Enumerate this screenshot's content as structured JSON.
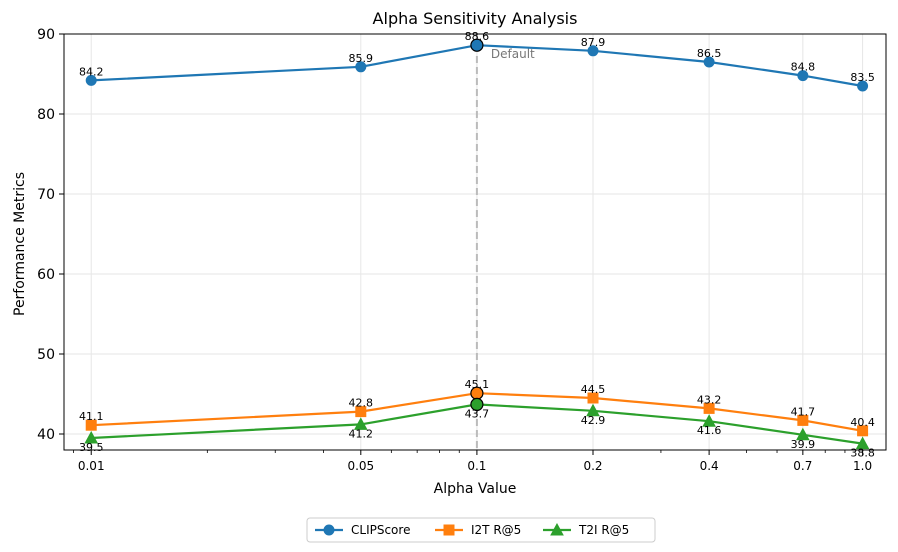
{
  "chart_data": {
    "type": "line",
    "title": "Alpha Sensitivity Analysis",
    "xlabel": "Alpha Value",
    "ylabel": "Performance Metrics",
    "x_scale": "log",
    "x": [
      0.01,
      0.05,
      0.1,
      0.2,
      0.4,
      0.7,
      1.0
    ],
    "x_tick_labels": [
      "0.01",
      "0.05",
      "0.1",
      "0.2",
      "0.4",
      "0.7",
      "1.0"
    ],
    "ylim": [
      38,
      90
    ],
    "y_ticks": [
      40,
      50,
      60,
      70,
      80,
      90
    ],
    "y_tick_labels": [
      "40",
      "50",
      "60",
      "70",
      "80",
      "90"
    ],
    "grid": true,
    "reference_line": {
      "x": 0.1,
      "label": "Default",
      "color": "#bbbbbb"
    },
    "highlight_x": 0.1,
    "legend_position": "bottom-center",
    "series": [
      {
        "name": "CLIPScore",
        "marker": "circle",
        "color": "#1f77b4",
        "values": [
          84.2,
          85.9,
          88.6,
          87.9,
          86.5,
          84.8,
          83.5
        ],
        "labels": [
          "84.2",
          "85.9",
          "88.6",
          "87.9",
          "86.5",
          "84.8",
          "83.5"
        ]
      },
      {
        "name": "I2T R@5",
        "marker": "square",
        "color": "#ff7f0e",
        "values": [
          41.1,
          42.8,
          45.1,
          44.5,
          43.2,
          41.7,
          40.4
        ],
        "labels": [
          "41.1",
          "42.8",
          "45.1",
          "44.5",
          "43.2",
          "41.7",
          "40.4"
        ]
      },
      {
        "name": "T2I R@5",
        "marker": "triangle",
        "color": "#2ca02c",
        "values": [
          39.5,
          41.2,
          43.7,
          42.9,
          41.6,
          39.9,
          38.8
        ],
        "labels": [
          "39.5",
          "41.2",
          "43.7",
          "42.9",
          "41.6",
          "39.9",
          "38.8"
        ]
      }
    ]
  }
}
